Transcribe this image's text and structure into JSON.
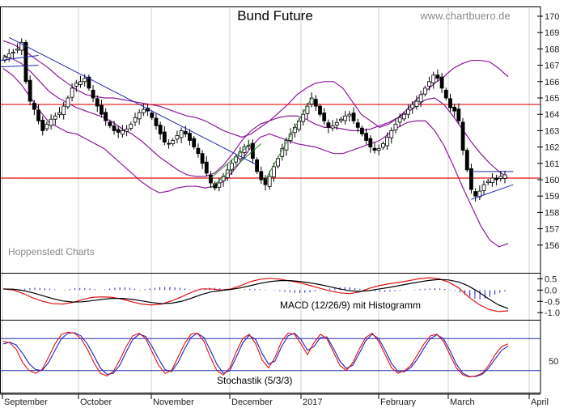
{
  "chart_data": [
    {
      "type": "candlestick",
      "title": "Bund Future",
      "watermark": "www.chartbuero.de",
      "source_note": "Hoppenstedt Charts",
      "ylim": [
        155,
        170
      ],
      "yticks": [
        "156",
        "157",
        "158",
        "159",
        "160",
        "161",
        "162",
        "163",
        "164",
        "165",
        "166",
        "167",
        "168",
        "169",
        "170"
      ],
      "x_months": [
        "September",
        "October",
        "November",
        "December",
        "2017",
        "February",
        "March",
        "April"
      ],
      "horizontal_lines": [
        164.6,
        160.1
      ],
      "colors": {
        "bands": "#8b1a9b",
        "trend": "#1f2ab0",
        "channel": "#2a8a2a",
        "support": "#e01010"
      },
      "closes": [
        167.5,
        167.7,
        167.8,
        168.0,
        168.4,
        166.0,
        164.8,
        164.3,
        163.6,
        163.0,
        163.4,
        163.7,
        163.9,
        164.1,
        164.5,
        165.0,
        165.6,
        165.9,
        166.0,
        166.2,
        165.6,
        165.0,
        164.5,
        164.0,
        163.6,
        163.3,
        163.0,
        162.9,
        163.0,
        163.1,
        163.4,
        163.8,
        164.1,
        164.3,
        164.2,
        163.8,
        163.3,
        162.8,
        162.3,
        162.2,
        162.4,
        162.7,
        163.0,
        162.8,
        162.4,
        162.0,
        161.6,
        161.0,
        160.4,
        159.8,
        159.5,
        159.8,
        160.2,
        160.6,
        161.0,
        161.4,
        161.7,
        162.0,
        162.1,
        161.3,
        160.5,
        160.0,
        159.7,
        160.2,
        160.8,
        161.3,
        161.9,
        162.4,
        162.8,
        163.2,
        163.6,
        164.0,
        164.5,
        165.0,
        164.5,
        164.0,
        163.6,
        163.2,
        163.3,
        163.5,
        163.7,
        163.9,
        164.0,
        163.6,
        163.2,
        162.8,
        162.4,
        162.0,
        161.8,
        161.9,
        162.2,
        162.6,
        163.0,
        163.4,
        163.8,
        164.0,
        164.3,
        164.6,
        164.8,
        165.2,
        165.6,
        166.0,
        166.4,
        166.2,
        165.6,
        165.0,
        164.4,
        164.2,
        163.6,
        161.8,
        160.6,
        159.4,
        159.0,
        159.3,
        159.7,
        159.9,
        160.1,
        160.0,
        160.2,
        160.3
      ],
      "bollinger": {
        "upper": [
          168.5,
          168.3,
          168.0,
          167.6,
          167.2,
          166.8,
          166.3,
          165.9,
          165.5,
          165.2,
          165.1,
          165.0,
          165.0,
          164.9,
          164.8,
          164.7,
          164.6,
          164.5,
          164.3,
          164.1,
          163.9,
          163.8,
          163.6,
          163.3,
          163.0,
          162.8,
          162.6,
          162.8,
          163.2,
          163.6,
          164.1,
          164.6,
          165.2,
          165.6,
          165.9,
          166.0,
          166.0,
          165.6,
          164.8,
          164.0,
          163.6,
          163.2,
          163.4,
          163.8,
          164.3,
          164.9,
          165.4,
          165.9,
          166.3,
          166.8,
          167.1,
          167.3,
          167.3,
          167.2,
          166.8,
          166.3
        ],
        "middle": [
          167.6,
          167.4,
          167.1,
          166.6,
          166.0,
          165.4,
          165.0,
          164.7,
          164.4,
          164.2,
          164.0,
          163.8,
          163.5,
          163.1,
          162.8,
          162.4,
          161.9,
          161.4,
          161.0,
          160.6,
          160.3,
          160.2,
          160.2,
          160.4,
          160.9,
          161.6,
          162.4,
          163.0,
          163.4,
          163.6,
          163.8,
          163.9,
          163.9,
          163.7,
          163.4,
          163.2,
          163.2,
          163.1,
          163.0,
          163.0,
          163.1,
          163.3,
          163.5,
          163.8,
          164.1,
          164.5,
          164.9,
          165.0,
          164.6,
          163.9,
          163.1,
          162.3,
          161.6,
          161.0,
          160.5,
          160.1
        ],
        "lower": [
          166.8,
          166.4,
          165.8,
          165.0,
          164.2,
          163.5,
          163.2,
          162.9,
          162.8,
          162.5,
          162.2,
          161.9,
          161.4,
          160.9,
          160.4,
          159.9,
          159.5,
          159.2,
          159.3,
          159.5,
          159.6,
          159.6,
          159.5,
          159.6,
          159.9,
          160.5,
          161.2,
          162.0,
          162.6,
          162.8,
          162.6,
          162.4,
          162.2,
          162.1,
          162.0,
          161.8,
          161.6,
          161.6,
          161.8,
          162.0,
          162.2,
          162.4,
          162.8,
          163.2,
          163.5,
          163.6,
          163.6,
          163.0,
          162.1,
          160.9,
          159.6,
          158.4,
          157.2,
          156.3,
          155.9,
          156.1
        ]
      }
    },
    {
      "type": "line",
      "title": "",
      "label": "MACD (12/26/9) mit Histogramm",
      "ylim": [
        -1.1,
        0.55
      ],
      "yticks": [
        "0.5",
        "0.0",
        "-0.5",
        "-1.0"
      ],
      "macd": [
        0.05,
        0.0,
        -0.15,
        -0.35,
        -0.5,
        -0.6,
        -0.62,
        -0.55,
        -0.42,
        -0.32,
        -0.3,
        -0.32,
        -0.4,
        -0.52,
        -0.62,
        -0.66,
        -0.62,
        -0.48,
        -0.3,
        -0.1,
        0.05,
        0.05,
        0.0,
        0.05,
        0.2,
        0.38,
        0.48,
        0.52,
        0.48,
        0.4,
        0.32,
        0.2,
        0.08,
        -0.04,
        -0.12,
        -0.16,
        -0.08,
        0.08,
        0.2,
        0.28,
        0.34,
        0.42,
        0.5,
        0.55,
        0.5,
        0.35,
        0.1,
        -0.3,
        -0.62,
        -0.85,
        -0.95,
        -0.92
      ],
      "signal": [
        0.05,
        0.04,
        -0.02,
        -0.12,
        -0.25,
        -0.38,
        -0.48,
        -0.53,
        -0.52,
        -0.47,
        -0.41,
        -0.37,
        -0.37,
        -0.41,
        -0.48,
        -0.55,
        -0.6,
        -0.58,
        -0.5,
        -0.36,
        -0.2,
        -0.08,
        -0.02,
        0.03,
        0.1,
        0.2,
        0.3,
        0.38,
        0.42,
        0.42,
        0.38,
        0.32,
        0.24,
        0.15,
        0.05,
        -0.03,
        -0.06,
        -0.02,
        0.05,
        0.12,
        0.2,
        0.28,
        0.36,
        0.43,
        0.47,
        0.45,
        0.36,
        0.18,
        -0.08,
        -0.38,
        -0.65,
        -0.82
      ],
      "histogram": [
        0.0,
        0.0,
        0.01,
        0.04,
        0.06,
        0.09,
        0.1,
        0.09,
        0.08,
        0.06,
        0.03,
        0.0,
        0.02,
        0.05,
        0.08,
        0.09,
        0.09,
        0.07,
        0.04,
        0.01,
        0.03,
        0.07,
        0.1,
        0.12,
        0.12,
        0.1,
        0.06,
        0.02,
        0.04,
        0.07,
        0.1,
        0.13,
        0.14,
        0.14,
        0.12,
        0.1,
        0.07,
        0.03,
        0.02,
        0.05,
        0.08,
        0.1,
        0.1,
        0.08,
        0.05,
        0.02,
        0.0,
        0.01,
        0.03,
        0.05,
        0.05,
        0.04,
        0.02,
        0.0,
        -0.02,
        -0.05,
        -0.08,
        -0.1,
        -0.12,
        -0.13,
        -0.12,
        -0.1,
        -0.06,
        -0.02,
        0.02,
        0.06,
        0.1,
        0.12,
        0.13,
        0.12,
        0.09,
        0.05,
        0.02,
        -0.02,
        -0.05,
        -0.07,
        -0.08,
        -0.07,
        -0.05,
        -0.03,
        -0.01,
        0.0,
        0.02,
        0.04,
        0.06,
        0.07,
        0.08,
        0.07,
        0.05,
        0.02,
        -0.03,
        -0.1,
        -0.2,
        -0.3,
        -0.38,
        -0.42,
        -0.38,
        -0.3,
        -0.2,
        -0.12,
        -0.06
      ]
    },
    {
      "type": "line",
      "title": "",
      "label": "Stochastik (5/3/3)",
      "ylim": [
        0,
        100
      ],
      "yticks": [
        "50"
      ],
      "levels": [
        80,
        20
      ],
      "k": [
        75,
        72,
        60,
        35,
        20,
        15,
        22,
        45,
        70,
        88,
        92,
        90,
        80,
        60,
        35,
        15,
        10,
        18,
        40,
        65,
        85,
        90,
        80,
        55,
        30,
        15,
        20,
        45,
        70,
        88,
        90,
        75,
        45,
        20,
        12,
        25,
        55,
        80,
        88,
        70,
        40,
        25,
        45,
        75,
        90,
        88,
        70,
        50,
        72,
        88,
        80,
        55,
        30,
        20,
        35,
        60,
        82,
        90,
        75,
        50,
        25,
        15,
        20,
        30,
        50,
        70,
        85,
        88,
        75,
        50,
        25,
        12,
        8,
        10,
        15,
        30,
        50,
        65,
        70
      ],
      "d": [
        70,
        73,
        68,
        52,
        33,
        22,
        20,
        35,
        58,
        80,
        90,
        91,
        85,
        70,
        48,
        25,
        13,
        15,
        30,
        55,
        78,
        88,
        84,
        65,
        42,
        22,
        18,
        35,
        60,
        82,
        90,
        82,
        58,
        32,
        15,
        20,
        45,
        72,
        86,
        78,
        52,
        32,
        38,
        65,
        85,
        90,
        78,
        58,
        65,
        82,
        83,
        62,
        38,
        24,
        30,
        52,
        76,
        88,
        80,
        58,
        33,
        18,
        18,
        26,
        42,
        62,
        80,
        87,
        80,
        58,
        32,
        15,
        9,
        9,
        13,
        25,
        42,
        58,
        66
      ]
    }
  ]
}
